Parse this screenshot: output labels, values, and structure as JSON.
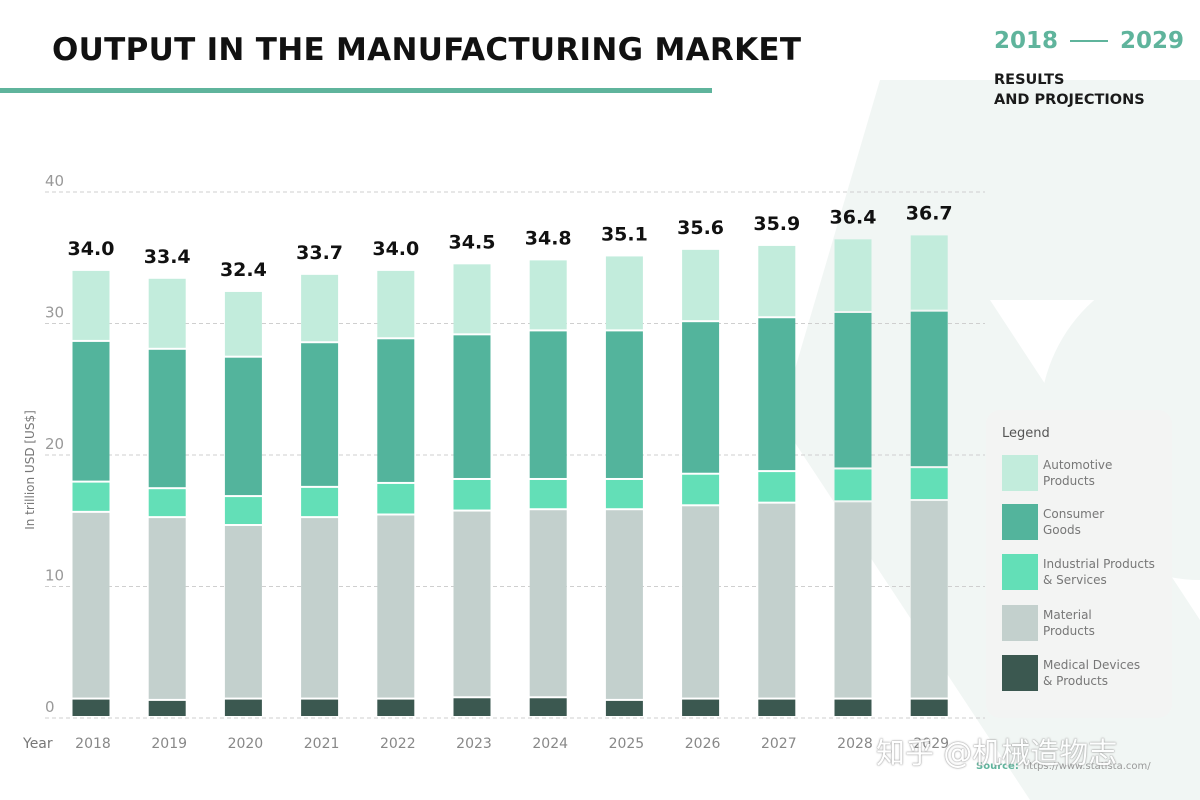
{
  "header": {
    "title": "OUTPUT IN THE MANUFACTURING MARKET",
    "year_start": "2018",
    "year_end": "2029",
    "subtitle_line1": "RESULTS",
    "subtitle_line2": "AND PROJECTIONS"
  },
  "legend": {
    "title": "Legend",
    "items": [
      {
        "line1": "Automotive",
        "line2": "Products",
        "color": "#c2ecdc"
      },
      {
        "line1": "Consumer",
        "line2": "Goods",
        "color": "#53b49c"
      },
      {
        "line1": "Industrial Products",
        "line2": "& Services",
        "color": "#63dfb7"
      },
      {
        "line1": "Material",
        "line2": "Products",
        "color": "#c3d0cd"
      },
      {
        "line1": "Medical Devices",
        "line2": "& Products",
        "color": "#3b5850"
      }
    ]
  },
  "footer": {
    "source_label": "Source:",
    "source_url": "https://www.statista.com/",
    "watermark": "知乎 @机械造物志"
  },
  "colors": {
    "accent": "#5fb49c",
    "automotive": "#c2ecdc",
    "consumer": "#53b49c",
    "industrial": "#63dfb7",
    "material": "#c3d0cd",
    "medical": "#3b5850"
  },
  "chart_data": {
    "type": "bar",
    "stacked": true,
    "xlabel": "Year",
    "ylabel": "In trillion USD [US$]",
    "ylim": [
      0,
      40
    ],
    "yticks": [
      0,
      10,
      20,
      30,
      40
    ],
    "grid": true,
    "legend_position": "right",
    "categories": [
      "2018",
      "2019",
      "2020",
      "2021",
      "2022",
      "2023",
      "2024",
      "2025",
      "2026",
      "2027",
      "2028",
      "2029"
    ],
    "totals": [
      34.0,
      33.4,
      32.4,
      33.7,
      34.0,
      34.5,
      34.8,
      35.1,
      35.6,
      35.9,
      36.4,
      36.7
    ],
    "total_labels": [
      "34.0",
      "33.4",
      "32.4",
      "33.7",
      "34.0",
      "34.5",
      "34.8",
      "35.1",
      "35.6",
      "35.9",
      "36.4",
      "36.7"
    ],
    "series": [
      {
        "name": "Medical Devices & Products",
        "color": "#3b5850",
        "values": [
          1.4,
          1.3,
          1.4,
          1.4,
          1.4,
          1.5,
          1.5,
          1.3,
          1.4,
          1.4,
          1.4,
          1.4
        ]
      },
      {
        "name": "Material Products",
        "color": "#c3d0cd",
        "values": [
          14.2,
          13.9,
          13.2,
          13.8,
          14.0,
          14.2,
          14.3,
          14.5,
          14.7,
          14.9,
          15.0,
          15.1
        ]
      },
      {
        "name": "Industrial Products & Services",
        "color": "#63dfb7",
        "values": [
          2.3,
          2.2,
          2.2,
          2.3,
          2.4,
          2.4,
          2.3,
          2.3,
          2.4,
          2.4,
          2.5,
          2.5
        ]
      },
      {
        "name": "Consumer Goods",
        "color": "#53b49c",
        "values": [
          10.7,
          10.6,
          10.6,
          11.0,
          11.0,
          11.0,
          11.3,
          11.3,
          11.6,
          11.7,
          11.9,
          11.9
        ]
      },
      {
        "name": "Automotive Products",
        "color": "#c2ecdc",
        "values": [
          5.4,
          5.4,
          5.0,
          5.2,
          5.2,
          5.4,
          5.4,
          5.7,
          5.5,
          5.5,
          5.6,
          5.8
        ]
      }
    ]
  }
}
